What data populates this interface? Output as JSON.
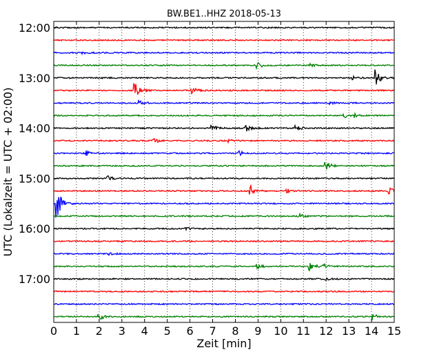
{
  "chart_data": {
    "type": "line",
    "title": "BW.BE1..HHZ 2018-05-13",
    "xlabel": "Zeit  [min]",
    "ylabel": "UTC (Lokalzeit = UTC + 02:00)",
    "xlim": [
      0,
      15
    ],
    "x_ticks": [
      "0",
      "1",
      "2",
      "3",
      "4",
      "5",
      "6",
      "7",
      "8",
      "9",
      "10",
      "11",
      "12",
      "13",
      "14",
      "15"
    ],
    "y_tick_labels": [
      "12:00",
      "13:00",
      "14:00",
      "15:00",
      "16:00",
      "17:00"
    ],
    "grid": true,
    "line_colors": [
      "#000000",
      "#ff0000",
      "#0000ff",
      "#008000"
    ],
    "traces": [
      {
        "start": "12:00",
        "events": []
      },
      {
        "start": "12:15",
        "events": []
      },
      {
        "start": "12:30",
        "events": [
          {
            "t": 1.3,
            "amp": 0.2
          }
        ]
      },
      {
        "start": "12:45",
        "events": [
          {
            "t": 9.0,
            "amp": 0.6
          },
          {
            "t": 11.3,
            "amp": 0.3
          }
        ]
      },
      {
        "start": "13:00",
        "events": [
          {
            "t": 13.2,
            "amp": 0.3
          },
          {
            "t": 14.2,
            "amp": 1.6
          }
        ]
      },
      {
        "start": "13:15",
        "events": [
          {
            "t": 3.6,
            "amp": 1.5
          },
          {
            "t": 6.1,
            "amp": 0.8
          }
        ]
      },
      {
        "start": "13:30",
        "events": [
          {
            "t": 3.8,
            "amp": 0.4
          },
          {
            "t": 12.2,
            "amp": 0.2
          }
        ]
      },
      {
        "start": "13:45",
        "events": [
          {
            "t": 12.8,
            "amp": 0.4
          },
          {
            "t": 13.3,
            "amp": 0.3
          }
        ]
      },
      {
        "start": "14:00",
        "events": [
          {
            "t": 7.0,
            "amp": 0.5
          },
          {
            "t": 8.5,
            "amp": 0.6
          },
          {
            "t": 10.7,
            "amp": 0.6
          }
        ]
      },
      {
        "start": "14:15",
        "events": [
          {
            "t": 4.4,
            "amp": 0.6
          },
          {
            "t": 7.7,
            "amp": 0.3
          }
        ]
      },
      {
        "start": "14:30",
        "events": [
          {
            "t": 1.45,
            "amp": 0.6
          },
          {
            "t": 8.2,
            "amp": 0.5
          }
        ]
      },
      {
        "start": "14:45",
        "events": [
          {
            "t": 12.0,
            "amp": 0.9
          }
        ]
      },
      {
        "start": "15:00",
        "events": [
          {
            "t": 2.4,
            "amp": 0.5
          }
        ]
      },
      {
        "start": "15:15",
        "events": [
          {
            "t": 8.7,
            "amp": 1.0
          },
          {
            "t": 10.3,
            "amp": 0.4
          },
          {
            "t": 14.8,
            "amp": 0.6
          }
        ]
      },
      {
        "start": "15:30",
        "events": [
          {
            "t": 0.15,
            "amp": 3.0
          }
        ]
      },
      {
        "start": "15:45",
        "events": [
          {
            "t": 10.8,
            "amp": 0.5
          }
        ]
      },
      {
        "start": "16:00",
        "events": [
          {
            "t": 5.8,
            "amp": 0.3
          }
        ]
      },
      {
        "start": "16:15",
        "events": []
      },
      {
        "start": "16:30",
        "events": [
          {
            "t": 2.5,
            "amp": 0.2
          }
        ]
      },
      {
        "start": "16:45",
        "events": [
          {
            "t": 9.0,
            "amp": 0.4
          },
          {
            "t": 11.3,
            "amp": 0.8
          },
          {
            "t": 11.9,
            "amp": 0.4
          }
        ]
      },
      {
        "start": "17:00",
        "events": [
          {
            "t": 12.0,
            "amp": 0.2
          }
        ]
      },
      {
        "start": "17:15",
        "events": []
      },
      {
        "start": "17:30",
        "events": []
      },
      {
        "start": "17:45",
        "events": [
          {
            "t": 2.0,
            "amp": 0.8
          },
          {
            "t": 14.1,
            "amp": 0.6
          }
        ]
      }
    ]
  }
}
